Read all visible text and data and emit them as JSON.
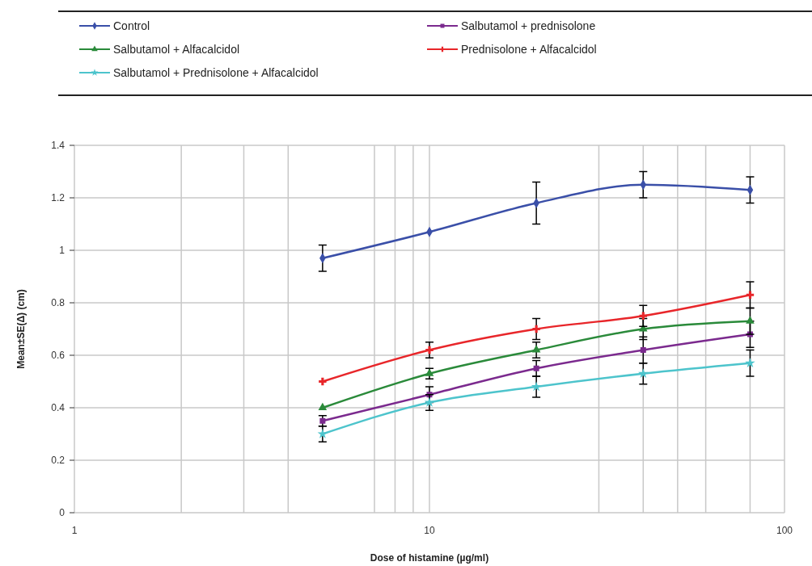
{
  "chart_data": {
    "type": "line",
    "xlabel": "Dose of histamine (µg/ml)",
    "ylabel": "Mean±SE(Δ) (cm)",
    "log": "x",
    "grid": true,
    "legend": "top",
    "xlim": [
      1,
      100
    ],
    "xticks": [
      1,
      {
        "value": 2,
        "label": null
      },
      {
        "value": 3,
        "label": null
      },
      {
        "value": 4,
        "label": null
      },
      {
        "value": 7,
        "label": null
      },
      {
        "value": 8,
        "label": null
      },
      {
        "value": 9,
        "label": null
      },
      10,
      {
        "value": 30,
        "label": null
      },
      {
        "value": 40,
        "label": null
      },
      {
        "value": 50,
        "label": null
      },
      {
        "value": 60,
        "label": null
      },
      {
        "value": 80,
        "label": null
      },
      100
    ],
    "ylim": [
      0,
      1.4
    ],
    "yticks": [
      0,
      0.2,
      0.4,
      0.6,
      0.8,
      1,
      1.2,
      1.4
    ],
    "x": [
      5,
      10,
      20,
      40,
      80
    ],
    "series": [
      {
        "name": "Control",
        "color": "#3a4fa8",
        "marker": "diamond",
        "values": [
          0.97,
          1.07,
          1.18,
          1.25,
          1.23
        ],
        "errors": [
          0.05,
          null,
          0.08,
          0.05,
          0.05
        ]
      },
      {
        "name": "Salbutamol + prednisolone",
        "color": "#7b2a8e",
        "marker": "square",
        "values": [
          0.35,
          0.45,
          0.55,
          0.62,
          0.68
        ],
        "errors": [
          0.02,
          0.03,
          0.03,
          0.05,
          0.05
        ]
      },
      {
        "name": "Salbutamol + Alfacalcidol",
        "color": "#2a8a3a",
        "marker": "triangle",
        "values": [
          0.4,
          0.53,
          0.62,
          0.7,
          0.73
        ],
        "errors": [
          null,
          0.02,
          0.03,
          0.04,
          0.05
        ]
      },
      {
        "name": "Prednisolone + Alfacalcidol",
        "color": "#e8262a",
        "marker": "cross",
        "values": [
          0.5,
          0.62,
          0.7,
          0.75,
          0.83
        ],
        "errors": [
          null,
          0.03,
          0.04,
          0.04,
          0.05
        ]
      },
      {
        "name": "Salbutamol + Prednisolone + Alfacalcidol",
        "color": "#4dc4cc",
        "marker": "star",
        "values": [
          0.3,
          0.42,
          0.48,
          0.53,
          0.57
        ],
        "errors": [
          0.03,
          0.03,
          0.04,
          0.04,
          0.05
        ]
      }
    ]
  }
}
